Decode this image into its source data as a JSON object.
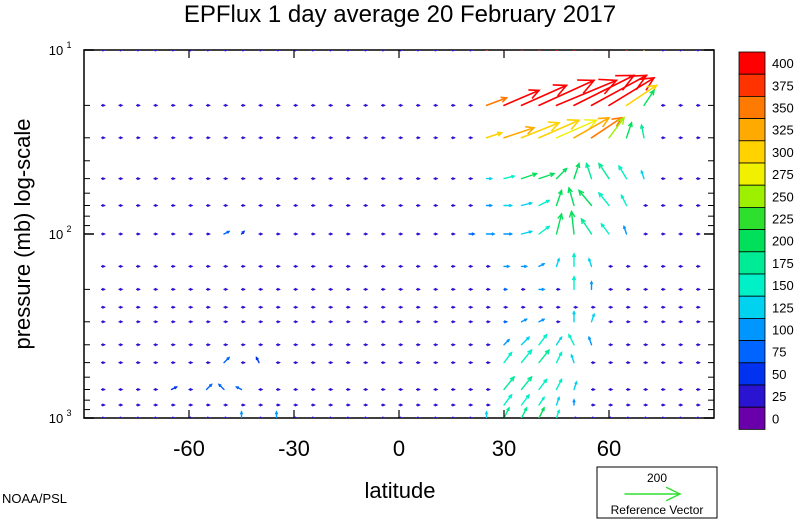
{
  "chart_data": {
    "type": "vector",
    "title": "EPFlux  1 day average  20 February  2017",
    "xlabel": "latitude",
    "ylabel": "pressure (mb)  log-scale",
    "xlim": [
      -90,
      90
    ],
    "xticks": [
      -60,
      -30,
      0,
      30,
      60
    ],
    "xtick_labels": [
      "-60",
      "-30",
      "0",
      "30",
      "60"
    ],
    "ylim": [
      1000,
      10
    ],
    "yscale": "log",
    "ytick_labels": [
      {
        "value": 10,
        "base": "10",
        "exp": "1"
      },
      {
        "value": 100,
        "base": "10",
        "exp": "2"
      },
      {
        "value": 1000,
        "base": "10",
        "exp": "3"
      }
    ],
    "colorbar": {
      "labels": [
        "400",
        "375",
        "350",
        "325",
        "300",
        "275",
        "250",
        "225",
        "200",
        "175",
        "150",
        "125",
        "100",
        "75",
        "50",
        "25",
        "0"
      ],
      "colors": [
        "#ff0000",
        "#ff3300",
        "#ff7a00",
        "#ffaa00",
        "#ffd200",
        "#f0f000",
        "#9cf000",
        "#2ee02e",
        "#00e05a",
        "#00eb96",
        "#00f0c8",
        "#00d2f0",
        "#0096ff",
        "#0064ff",
        "#0032f0",
        "#2a14d2",
        "#6a00aa"
      ]
    },
    "reference_vector": {
      "value": "200",
      "label": "Reference Vector",
      "magnitude": 200,
      "color": "#2ee02e"
    },
    "credit": "NOAA/PSL",
    "grid_lat": [
      -85,
      -80,
      -75,
      -70,
      -65,
      -60,
      -55,
      -50,
      -45,
      -40,
      -35,
      -30,
      -25,
      -20,
      -15,
      -10,
      -5,
      0,
      5,
      10,
      15,
      20,
      25,
      30,
      35,
      40,
      45,
      50,
      55,
      60,
      65,
      70,
      75,
      80,
      85
    ],
    "levels_mb": [
      10,
      20,
      30,
      50,
      70,
      100,
      150,
      200,
      250,
      300,
      400,
      500,
      700,
      850,
      1000
    ],
    "vectors": [
      {
        "lat": 25,
        "p": 10,
        "u": 40,
        "v": -20,
        "mag": 380
      },
      {
        "lat": 30,
        "p": 10,
        "u": 60,
        "v": -30,
        "mag": 400
      },
      {
        "lat": 35,
        "p": 10,
        "u": 80,
        "v": -30,
        "mag": 400
      },
      {
        "lat": 40,
        "p": 10,
        "u": 100,
        "v": -40,
        "mag": 400
      },
      {
        "lat": 45,
        "p": 10,
        "u": 110,
        "v": -50,
        "mag": 400
      },
      {
        "lat": 50,
        "p": 10,
        "u": 110,
        "v": -60,
        "mag": 400
      },
      {
        "lat": 55,
        "p": 10,
        "u": 100,
        "v": -60,
        "mag": 400
      },
      {
        "lat": 60,
        "p": 10,
        "u": 90,
        "v": -60,
        "mag": 400
      },
      {
        "lat": 65,
        "p": 10,
        "u": 70,
        "v": -50,
        "mag": 380
      },
      {
        "lat": 70,
        "p": 10,
        "u": 40,
        "v": -40,
        "mag": 330
      },
      {
        "lat": 25,
        "p": 20,
        "u": 40,
        "v": -15,
        "mag": 350
      },
      {
        "lat": 30,
        "p": 20,
        "u": 70,
        "v": -30,
        "mag": 400
      },
      {
        "lat": 35,
        "p": 20,
        "u": 90,
        "v": -40,
        "mag": 400
      },
      {
        "lat": 40,
        "p": 20,
        "u": 110,
        "v": -50,
        "mag": 400
      },
      {
        "lat": 45,
        "p": 20,
        "u": 120,
        "v": -50,
        "mag": 400
      },
      {
        "lat": 50,
        "p": 20,
        "u": 120,
        "v": -60,
        "mag": 400
      },
      {
        "lat": 55,
        "p": 20,
        "u": 110,
        "v": -60,
        "mag": 400
      },
      {
        "lat": 60,
        "p": 20,
        "u": 90,
        "v": -55,
        "mag": 400
      },
      {
        "lat": 65,
        "p": 20,
        "u": 60,
        "v": -40,
        "mag": 320
      },
      {
        "lat": 70,
        "p": 20,
        "u": 20,
        "v": -30,
        "mag": 220
      },
      {
        "lat": 25,
        "p": 30,
        "u": 30,
        "v": -10,
        "mag": 300
      },
      {
        "lat": 30,
        "p": 30,
        "u": 60,
        "v": -20,
        "mag": 330
      },
      {
        "lat": 35,
        "p": 30,
        "u": 75,
        "v": -30,
        "mag": 320
      },
      {
        "lat": 40,
        "p": 30,
        "u": 80,
        "v": -35,
        "mag": 300
      },
      {
        "lat": 45,
        "p": 30,
        "u": 80,
        "v": -35,
        "mag": 290
      },
      {
        "lat": 50,
        "p": 30,
        "u": 70,
        "v": -40,
        "mag": 330
      },
      {
        "lat": 55,
        "p": 30,
        "u": 60,
        "v": -40,
        "mag": 350
      },
      {
        "lat": 60,
        "p": 30,
        "u": 30,
        "v": -40,
        "mag": 260
      },
      {
        "lat": 65,
        "p": 30,
        "u": 10,
        "v": -30,
        "mag": 210
      },
      {
        "lat": 70,
        "p": 30,
        "u": -5,
        "v": -25,
        "mag": 180
      },
      {
        "lat": 25,
        "p": 50,
        "u": 10,
        "v": 0,
        "mag": 130
      },
      {
        "lat": 30,
        "p": 50,
        "u": 20,
        "v": -5,
        "mag": 170
      },
      {
        "lat": 35,
        "p": 50,
        "u": 30,
        "v": -10,
        "mag": 200
      },
      {
        "lat": 40,
        "p": 50,
        "u": 30,
        "v": -10,
        "mag": 210
      },
      {
        "lat": 45,
        "p": 50,
        "u": 20,
        "v": -20,
        "mag": 200
      },
      {
        "lat": 50,
        "p": 50,
        "u": 10,
        "v": -30,
        "mag": 200
      },
      {
        "lat": 55,
        "p": 50,
        "u": -10,
        "v": -30,
        "mag": 190
      },
      {
        "lat": 60,
        "p": 50,
        "u": -20,
        "v": -30,
        "mag": 180
      },
      {
        "lat": 65,
        "p": 50,
        "u": -15,
        "v": -25,
        "mag": 160
      },
      {
        "lat": 70,
        "p": 50,
        "u": -5,
        "v": -15,
        "mag": 140
      },
      {
        "lat": 25,
        "p": 70,
        "u": 10,
        "v": 0,
        "mag": 110
      },
      {
        "lat": 30,
        "p": 70,
        "u": 15,
        "v": 0,
        "mag": 130
      },
      {
        "lat": 35,
        "p": 70,
        "u": 20,
        "v": -5,
        "mag": 140
      },
      {
        "lat": 40,
        "p": 70,
        "u": 20,
        "v": -10,
        "mag": 150
      },
      {
        "lat": 45,
        "p": 70,
        "u": 10,
        "v": -30,
        "mag": 200
      },
      {
        "lat": 50,
        "p": 70,
        "u": -10,
        "v": -35,
        "mag": 210
      },
      {
        "lat": 55,
        "p": 70,
        "u": -25,
        "v": -30,
        "mag": 200
      },
      {
        "lat": 60,
        "p": 70,
        "u": -20,
        "v": -25,
        "mag": 170
      },
      {
        "lat": 65,
        "p": 70,
        "u": -10,
        "v": -20,
        "mag": 150
      },
      {
        "lat": 20,
        "p": 100,
        "u": 10,
        "v": 0,
        "mag": 90
      },
      {
        "lat": 25,
        "p": 100,
        "u": 15,
        "v": 0,
        "mag": 110
      },
      {
        "lat": 30,
        "p": 100,
        "u": 15,
        "v": 0,
        "mag": 120
      },
      {
        "lat": 35,
        "p": 100,
        "u": 20,
        "v": -5,
        "mag": 140
      },
      {
        "lat": 40,
        "p": 100,
        "u": 20,
        "v": -15,
        "mag": 160
      },
      {
        "lat": 45,
        "p": 100,
        "u": 10,
        "v": -40,
        "mag": 210
      },
      {
        "lat": 50,
        "p": 100,
        "u": -5,
        "v": -45,
        "mag": 220
      },
      {
        "lat": 55,
        "p": 100,
        "u": -20,
        "v": -30,
        "mag": 190
      },
      {
        "lat": 60,
        "p": 100,
        "u": -15,
        "v": -20,
        "mag": 150
      },
      {
        "lat": 65,
        "p": 100,
        "u": -5,
        "v": -15,
        "mag": 120
      },
      {
        "lat": 30,
        "p": 150,
        "u": 10,
        "v": 0,
        "mag": 100
      },
      {
        "lat": 35,
        "p": 150,
        "u": 10,
        "v": 0,
        "mag": 110
      },
      {
        "lat": 40,
        "p": 150,
        "u": 10,
        "v": -5,
        "mag": 120
      },
      {
        "lat": 45,
        "p": 150,
        "u": 5,
        "v": -15,
        "mag": 140
      },
      {
        "lat": 50,
        "p": 150,
        "u": 0,
        "v": -25,
        "mag": 160
      },
      {
        "lat": 55,
        "p": 150,
        "u": -5,
        "v": -15,
        "mag": 130
      },
      {
        "lat": 30,
        "p": 200,
        "u": 5,
        "v": 0,
        "mag": 90
      },
      {
        "lat": 40,
        "p": 200,
        "u": 10,
        "v": 0,
        "mag": 100
      },
      {
        "lat": 50,
        "p": 200,
        "u": 0,
        "v": -25,
        "mag": 150
      },
      {
        "lat": 55,
        "p": 200,
        "u": 0,
        "v": -15,
        "mag": 120
      },
      {
        "lat": 30,
        "p": 300,
        "u": 5,
        "v": 0,
        "mag": 80
      },
      {
        "lat": 35,
        "p": 300,
        "u": 10,
        "v": -5,
        "mag": 100
      },
      {
        "lat": 40,
        "p": 300,
        "u": 10,
        "v": -5,
        "mag": 110
      },
      {
        "lat": 50,
        "p": 300,
        "u": 0,
        "v": -20,
        "mag": 140
      },
      {
        "lat": 55,
        "p": 300,
        "u": 5,
        "v": -15,
        "mag": 130
      },
      {
        "lat": 30,
        "p": 400,
        "u": 10,
        "v": -10,
        "mag": 120
      },
      {
        "lat": 35,
        "p": 400,
        "u": 15,
        "v": -15,
        "mag": 140
      },
      {
        "lat": 40,
        "p": 400,
        "u": 15,
        "v": -20,
        "mag": 160
      },
      {
        "lat": 45,
        "p": 400,
        "u": 10,
        "v": -15,
        "mag": 140
      },
      {
        "lat": 50,
        "p": 400,
        "u": -10,
        "v": -20,
        "mag": 150
      },
      {
        "lat": 55,
        "p": 400,
        "u": -5,
        "v": -15,
        "mag": 120
      },
      {
        "lat": 30,
        "p": 500,
        "u": 15,
        "v": -20,
        "mag": 150
      },
      {
        "lat": 35,
        "p": 500,
        "u": 20,
        "v": -25,
        "mag": 170
      },
      {
        "lat": 40,
        "p": 500,
        "u": 20,
        "v": -25,
        "mag": 180
      },
      {
        "lat": 45,
        "p": 500,
        "u": 10,
        "v": -20,
        "mag": 160
      },
      {
        "lat": 50,
        "p": 500,
        "u": -5,
        "v": -15,
        "mag": 130
      },
      {
        "lat": 30,
        "p": 700,
        "u": 20,
        "v": -25,
        "mag": 180
      },
      {
        "lat": 35,
        "p": 700,
        "u": 20,
        "v": -25,
        "mag": 190
      },
      {
        "lat": 40,
        "p": 700,
        "u": 15,
        "v": -20,
        "mag": 170
      },
      {
        "lat": 45,
        "p": 700,
        "u": 10,
        "v": -20,
        "mag": 160
      },
      {
        "lat": 50,
        "p": 700,
        "u": 5,
        "v": -15,
        "mag": 140
      },
      {
        "lat": 30,
        "p": 850,
        "u": 15,
        "v": -20,
        "mag": 170
      },
      {
        "lat": 35,
        "p": 850,
        "u": 15,
        "v": -20,
        "mag": 170
      },
      {
        "lat": 40,
        "p": 850,
        "u": 10,
        "v": -15,
        "mag": 150
      },
      {
        "lat": 45,
        "p": 850,
        "u": 5,
        "v": -15,
        "mag": 130
      },
      {
        "lat": 50,
        "p": 850,
        "u": 0,
        "v": -10,
        "mag": 110
      },
      {
        "lat": -65,
        "p": 700,
        "u": 10,
        "v": -5,
        "mag": 70
      },
      {
        "lat": -55,
        "p": 700,
        "u": 10,
        "v": -10,
        "mag": 90
      },
      {
        "lat": -50,
        "p": 700,
        "u": -10,
        "v": -10,
        "mag": 90
      },
      {
        "lat": -45,
        "p": 700,
        "u": -10,
        "v": -5,
        "mag": 80
      },
      {
        "lat": -50,
        "p": 500,
        "u": 10,
        "v": -10,
        "mag": 80
      },
      {
        "lat": -40,
        "p": 500,
        "u": -5,
        "v": -10,
        "mag": 70
      },
      {
        "lat": -50,
        "p": 100,
        "u": 10,
        "v": -5,
        "mag": 80
      },
      {
        "lat": -45,
        "p": 100,
        "u": 5,
        "v": -5,
        "mag": 60
      },
      {
        "lat": -45,
        "p": 1000,
        "u": 0,
        "v": -12,
        "mag": 110
      },
      {
        "lat": -35,
        "p": 1000,
        "u": 0,
        "v": -12,
        "mag": 120
      },
      {
        "lat": 25,
        "p": 1000,
        "u": 0,
        "v": -12,
        "mag": 130
      },
      {
        "lat": 30,
        "p": 1000,
        "u": 10,
        "v": -20,
        "mag": 180
      },
      {
        "lat": 35,
        "p": 1000,
        "u": 10,
        "v": -20,
        "mag": 190
      },
      {
        "lat": 40,
        "p": 1000,
        "u": 10,
        "v": -20,
        "mag": 200
      },
      {
        "lat": 45,
        "p": 1000,
        "u": 5,
        "v": -15,
        "mag": 160
      }
    ],
    "background_mag": 45
  }
}
